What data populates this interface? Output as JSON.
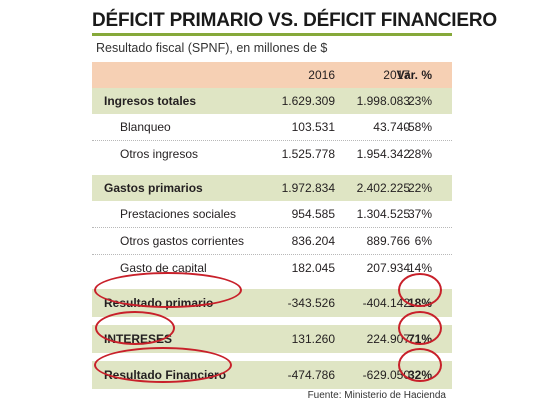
{
  "title": "DÉFICIT PRIMARIO VS. DÉFICIT FINANCIERO",
  "subtitle": "Resultado fiscal (SPNF), en millones de $",
  "columns": [
    "2016",
    "2017",
    "Var. %"
  ],
  "rows": [
    {
      "label": "Ingresos totales",
      "v2016": "1.629.309",
      "v2017": "1.998.083",
      "var": "23%"
    },
    {
      "label": "Blanqueo",
      "v2016": "103.531",
      "v2017": "43.740",
      "var": "-58%"
    },
    {
      "label": "Otros ingresos",
      "v2016": "1.525.778",
      "v2017": "1.954.342",
      "var": "28%"
    },
    {
      "label": "Gastos primarios",
      "v2016": "1.972.834",
      "v2017": "2.402.225",
      "var": "22%"
    },
    {
      "label": "Prestaciones sociales",
      "v2016": "954.585",
      "v2017": "1.304.525",
      "var": "37%"
    },
    {
      "label": "Otros gastos corrientes",
      "v2016": "836.204",
      "v2017": "889.766",
      "var": "6%"
    },
    {
      "label": "Gasto de capital",
      "v2016": "182.045",
      "v2017": "207.934",
      "var": "14%"
    },
    {
      "label": "Resultado primario",
      "v2016": "-343.526",
      "v2017": "-404.142",
      "var": "18%"
    },
    {
      "label": "INTERESES",
      "v2016": "131.260",
      "v2017": "224.907",
      "var": "71%"
    },
    {
      "label": "Resultado Financiero",
      "v2016": "-474.786",
      "v2017": "-629.050",
      "var": "32%"
    }
  ],
  "source": "Fuente: Ministerio de Hacienda",
  "colors": {
    "accent": "#86a93a",
    "header_bg": "#f6d0b4",
    "band_bg": "#dfe5c4",
    "highlight": "#c8202a"
  }
}
